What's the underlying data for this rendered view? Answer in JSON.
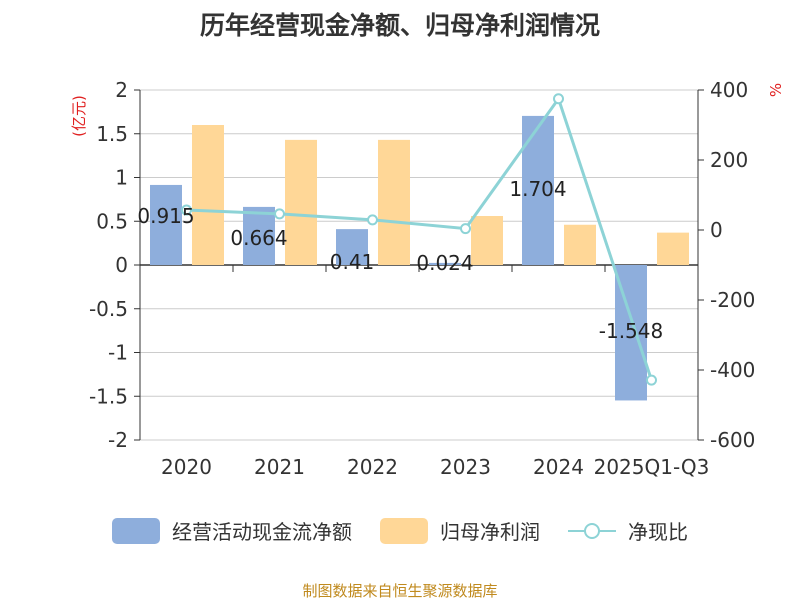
{
  "colors": {
    "bar_primary": "#8EAEDC",
    "bar_secondary": "#FFD797",
    "line": "#8DD3D6",
    "axis_unit": "#E02020",
    "footer": "#C08A1E",
    "text": "#333333",
    "grid": "#CCCCCC"
  },
  "chart_data": {
    "type": "bar",
    "title": "历年经营现金净额、归母净利润情况",
    "categories": [
      "2020",
      "2021",
      "2022",
      "2023",
      "2024",
      "2025Q1-Q3"
    ],
    "y_left": {
      "unit": "(亿元)",
      "min": -2,
      "max": 2,
      "ticks": [
        "2",
        "1.5",
        "1",
        "0.5",
        "0",
        "-0.5",
        "-1",
        "-1.5",
        "-2"
      ]
    },
    "y_right": {
      "unit": "%",
      "min": -600,
      "max": 400,
      "ticks": [
        "400",
        "200",
        "0",
        "-200",
        "-400",
        "-600"
      ]
    },
    "series": [
      {
        "name": "经营活动现金流净额",
        "kind": "bar",
        "axis": "left",
        "values": [
          0.915,
          0.664,
          0.41,
          0.024,
          1.704,
          -1.548
        ],
        "labels": [
          "0.915",
          "0.664",
          "0.41",
          "0.024",
          "1.704",
          "-1.548"
        ]
      },
      {
        "name": "归母净利润",
        "kind": "bar",
        "axis": "left",
        "values": [
          1.6,
          1.43,
          1.43,
          0.56,
          0.46,
          0.37
        ]
      },
      {
        "name": "净现比",
        "kind": "line",
        "axis": "right",
        "values": [
          57,
          46,
          29,
          4,
          375,
          -429
        ]
      }
    ]
  },
  "footer": {
    "text": "制图数据来自恒生聚源数据库"
  }
}
